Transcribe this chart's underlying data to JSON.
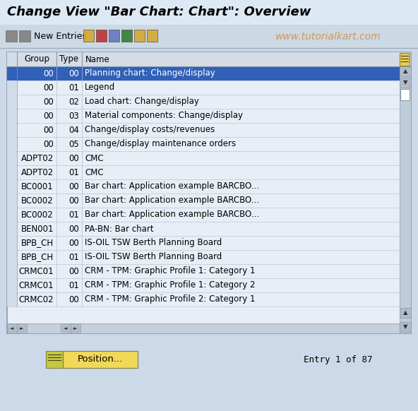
{
  "title": "Change View \"Bar Chart: Chart\": Overview",
  "watermark": "www.tutorialkart.com",
  "bg_color": "#ccd9e8",
  "title_bg": "#dce8f4",
  "toolbar_bg": "#ccd8e4",
  "table_outer_bg": "#f0f4f8",
  "table_header_bg": "#d4dce8",
  "row_bg_even": "#e8eef6",
  "row_bg_odd": "#f0f4fa",
  "selected_row_bg": "#3060b8",
  "selected_row_text": "#ffffff",
  "row_text": "#000000",
  "row_line_color": "#b8c8d8",
  "scrollbar_bg": "#b8c8d8",
  "col_headers": [
    "Group",
    "Type",
    "Name"
  ],
  "rows": [
    [
      "00",
      "00",
      "Planning chart: Change/display",
      true
    ],
    [
      "00",
      "01",
      "Legend",
      false
    ],
    [
      "00",
      "02",
      "Load chart: Change/display",
      false
    ],
    [
      "00",
      "03",
      "Material components: Change/display",
      false
    ],
    [
      "00",
      "04",
      "Change/display costs/revenues",
      false
    ],
    [
      "00",
      "05",
      "Change/display maintenance orders",
      false
    ],
    [
      "ADPT02",
      "00",
      "CMC",
      false
    ],
    [
      "ADPT02",
      "01",
      "CMC",
      false
    ],
    [
      "BC0001",
      "00",
      "Bar chart: Application example BARCBO...",
      false
    ],
    [
      "BC0002",
      "00",
      "Bar chart: Application example BARCBO...",
      false
    ],
    [
      "BC0002",
      "01",
      "Bar chart: Application example BARCBO...",
      false
    ],
    [
      "BEN001",
      "00",
      "PA-BN: Bar chart",
      false
    ],
    [
      "BPB_CH",
      "00",
      "IS-OIL TSW Berth Planning Board",
      false
    ],
    [
      "BPB_CH",
      "01",
      "IS-OIL TSW Berth Planning Board",
      false
    ],
    [
      "CRMC01",
      "00",
      "CRM - TPM: Graphic Profile 1: Category 1",
      false
    ],
    [
      "CRMC01",
      "01",
      "CRM - TPM: Graphic Profile 1: Category 2",
      false
    ],
    [
      "CRMC02",
      "00",
      "CRM - TPM: Graphic Profile 2: Category 1",
      false
    ]
  ],
  "footer_button": "Position...",
  "footer_text": "Entry 1 of 87",
  "title_fontsize": 13,
  "body_fontsize": 8.5,
  "header_fontsize": 8.5,
  "watermark_fontsize": 10
}
